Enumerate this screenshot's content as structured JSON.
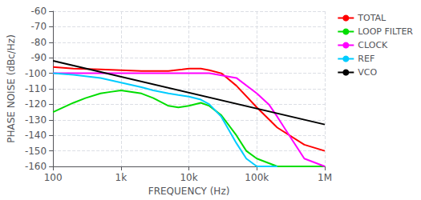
{
  "chart_data": {
    "type": "line",
    "xlabel": "FREQUENCY (Hz)",
    "ylabel": "PHASE NOISE (dBc/Hz)",
    "log": "x",
    "grid": true,
    "legend": "right",
    "xlim": [
      100,
      1000000
    ],
    "xticks": [
      100,
      {
        "value": 1000,
        "label": "1k"
      },
      {
        "value": 10000,
        "label": "10k"
      },
      {
        "value": 100000,
        "label": "100k"
      },
      {
        "value": 1000000,
        "label": "1M"
      }
    ],
    "ylim": [
      -160,
      -60
    ],
    "yticks": [
      -160,
      -150,
      -140,
      -130,
      -120,
      -110,
      -100,
      -90,
      -80,
      -70,
      -60
    ],
    "series": [
      {
        "name": "TOTAL",
        "color": "#ff0000",
        "x": [
          100,
          200,
          500,
          1000,
          2000,
          5000,
          8000,
          10000,
          15000,
          20000,
          30000,
          50000,
          100000,
          200000,
          500000,
          1000000
        ],
        "values": [
          -96,
          -97,
          -97.5,
          -98,
          -98.5,
          -98.5,
          -97.5,
          -97,
          -97,
          -98,
          -100,
          -108,
          -122,
          -135,
          -146,
          -150
        ]
      },
      {
        "name": "LOOP FILTER",
        "color": "#00dd00",
        "x": [
          100,
          200,
          300,
          500,
          700,
          1000,
          2000,
          3000,
          5000,
          7000,
          10000,
          15000,
          20000,
          30000,
          50000,
          70000,
          100000,
          200000,
          500000,
          1000000
        ],
        "values": [
          -125,
          -119,
          -116,
          -113,
          -112,
          -111,
          -113,
          -116,
          -121,
          -122,
          -121,
          -119,
          -121,
          -127,
          -140,
          -150,
          -155,
          -160,
          -160,
          -160
        ]
      },
      {
        "name": "CLOCK",
        "color": "#ff00ff",
        "x": [
          100,
          200,
          500,
          1000,
          2000,
          5000,
          10000,
          20000,
          50000,
          100000,
          150000,
          200000,
          300000,
          500000,
          1000000
        ],
        "values": [
          -100,
          -100,
          -100,
          -100,
          -100,
          -100,
          -100,
          -100,
          -103,
          -113,
          -120,
          -128,
          -140,
          -155,
          -160
        ]
      },
      {
        "name": "REF",
        "color": "#00ccff",
        "x": [
          100,
          200,
          500,
          1000,
          2000,
          3000,
          5000,
          7000,
          10000,
          15000,
          20000,
          30000,
          50000,
          70000,
          100000,
          200000
        ],
        "values": [
          -100,
          -101,
          -103,
          -106,
          -109,
          -111,
          -113,
          -114,
          -115,
          -117,
          -120,
          -128,
          -145,
          -155,
          -160,
          -160
        ]
      },
      {
        "name": "VCO",
        "color": "#000000",
        "x": [
          100,
          1000000
        ],
        "values": [
          -92,
          -133
        ]
      }
    ]
  }
}
